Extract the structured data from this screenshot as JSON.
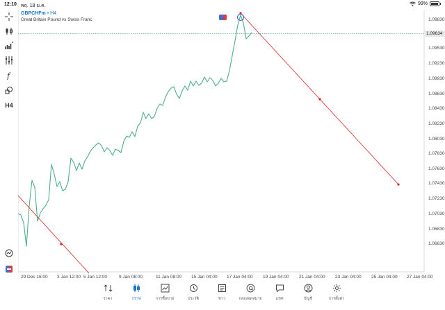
{
  "status_bar": {
    "time": "12:10",
    "date": "พฤ. 18 ม.ค.",
    "battery": "99%"
  },
  "chart": {
    "symbol": "GBPCHFm",
    "timeframe_suffix": "• H4",
    "description": "Great Britain Pound vs Swiss Franc",
    "current_price": "1.09634",
    "y_axis_labels": [
      "1.09830",
      "1.09530",
      "1.09230",
      "1.08930",
      "1.08630",
      "1.08430",
      "1.08230",
      "1.08030",
      "1.07830",
      "1.07630",
      "1.07430",
      "1.07230",
      "1.07030",
      "1.06830",
      "1.06630"
    ],
    "x_axis_labels": [
      "29 Dec 16:00",
      "3 Jan 12:00",
      "5 Jan 12:00",
      "9 Jan 08:00",
      "11 Jan 08:00",
      "15 Jan 04:00",
      "17 Jan 04:00",
      "19 Jan 04:00",
      "21 Jan 04:00",
      "23 Jan 04:00",
      "25 Jan 04:00",
      "27 Jan 04:00"
    ],
    "timeframe_button": "H4",
    "line_color": "#4caf87",
    "trendline_color": "#e02020"
  },
  "tabs": [
    {
      "label": "ราคา",
      "icon": "quotes-icon"
    },
    {
      "label": "กราฟ",
      "icon": "chart-icon",
      "active": true
    },
    {
      "label": "การซื้อขาย",
      "icon": "trade-icon"
    },
    {
      "label": "ประวัติ",
      "icon": "history-icon"
    },
    {
      "label": "ข่าว",
      "icon": "news-icon"
    },
    {
      "label": "กล่องจดหมาย",
      "icon": "mailbox-icon"
    },
    {
      "label": "แชท",
      "icon": "chat-icon"
    },
    {
      "label": "บัญชี",
      "icon": "account-icon"
    },
    {
      "label": "การตั้งค่า",
      "icon": "settings-icon"
    }
  ]
}
